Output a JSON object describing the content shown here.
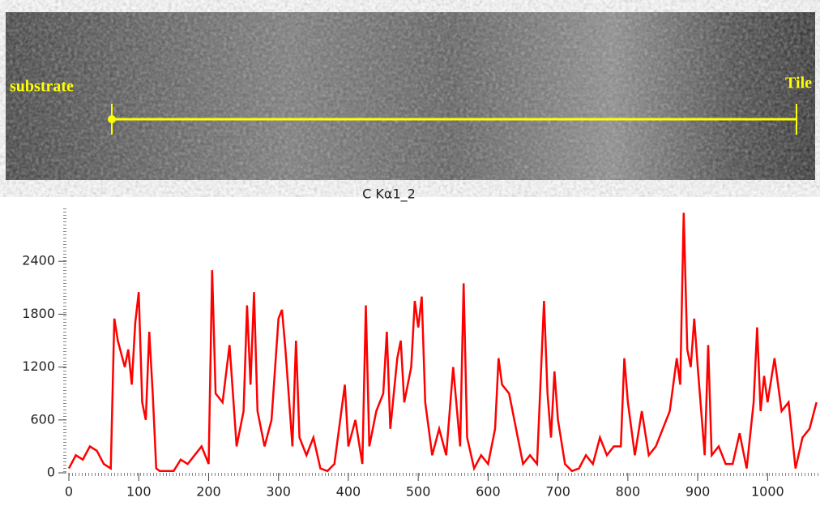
{
  "image": {
    "left_label": "substrate",
    "right_label": "Tile"
  },
  "chart_data": {
    "type": "line",
    "title": "C Kα1_2",
    "x": [
      0,
      10,
      20,
      30,
      40,
      50,
      60,
      65,
      70,
      80,
      85,
      90,
      95,
      100,
      105,
      110,
      115,
      120,
      125,
      130,
      140,
      150,
      160,
      170,
      180,
      190,
      200,
      205,
      210,
      220,
      230,
      240,
      250,
      255,
      260,
      265,
      270,
      280,
      290,
      300,
      305,
      310,
      320,
      325,
      330,
      340,
      350,
      360,
      370,
      380,
      390,
      395,
      400,
      410,
      420,
      425,
      430,
      440,
      450,
      455,
      460,
      470,
      475,
      480,
      490,
      495,
      500,
      505,
      510,
      520,
      530,
      540,
      550,
      560,
      565,
      570,
      580,
      590,
      600,
      610,
      615,
      620,
      630,
      640,
      650,
      660,
      670,
      680,
      685,
      690,
      695,
      700,
      710,
      720,
      730,
      740,
      750,
      760,
      770,
      780,
      790,
      795,
      800,
      810,
      820,
      830,
      840,
      850,
      860,
      870,
      875,
      880,
      885,
      890,
      895,
      900,
      910,
      915,
      920,
      930,
      940,
      950,
      960,
      970,
      980,
      985,
      990,
      995,
      1000,
      1010,
      1020,
      1030,
      1040,
      1050,
      1060,
      1070
    ],
    "series": [
      {
        "name": "C Kα1_2",
        "color": "#ff0000",
        "values": [
          50,
          200,
          150,
          300,
          250,
          100,
          50,
          1750,
          1500,
          1200,
          1400,
          1000,
          1700,
          2050,
          800,
          600,
          1600,
          900,
          50,
          20,
          20,
          20,
          150,
          100,
          200,
          300,
          100,
          2300,
          900,
          800,
          1450,
          300,
          700,
          1900,
          1000,
          2050,
          700,
          300,
          600,
          1750,
          1850,
          1400,
          300,
          1500,
          400,
          200,
          400,
          50,
          20,
          100,
          700,
          1000,
          300,
          600,
          100,
          1900,
          300,
          700,
          900,
          1600,
          500,
          1300,
          1500,
          800,
          1200,
          1950,
          1650,
          2000,
          800,
          200,
          500,
          200,
          1200,
          300,
          2150,
          400,
          50,
          200,
          100,
          500,
          1300,
          1000,
          900,
          500,
          100,
          200,
          100,
          1950,
          900,
          400,
          1150,
          600,
          100,
          20,
          50,
          200,
          100,
          400,
          200,
          300,
          300,
          1300,
          800,
          200,
          700,
          200,
          300,
          500,
          700,
          1300,
          1000,
          2950,
          1400,
          1200,
          1750,
          1200,
          200,
          1450,
          200,
          300,
          100,
          100,
          450,
          50,
          800,
          1650,
          700,
          1100,
          800,
          1300,
          700,
          800,
          50,
          400,
          500,
          800
        ]
      }
    ],
    "xlim": [
      0,
      1075
    ],
    "ylim": [
      0,
      3000
    ],
    "xticks": [
      0,
      100,
      200,
      300,
      400,
      500,
      600,
      700,
      800,
      900,
      1000
    ],
    "yticks": [
      0,
      600,
      1200,
      1800,
      2400
    ]
  }
}
